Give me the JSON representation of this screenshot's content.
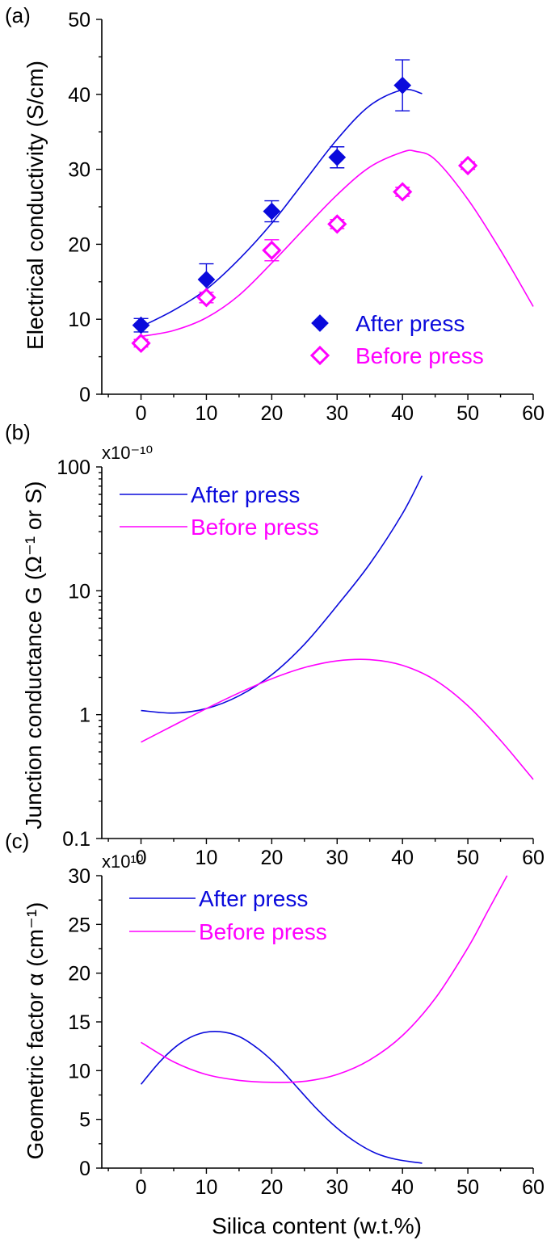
{
  "colors": {
    "after": "#0a0adc",
    "before": "#ff00ff",
    "axis": "#000000"
  },
  "xlabel": "Silica content (w.t.%)",
  "chart_data": [
    {
      "panel": "(a)",
      "type": "scatter",
      "ylabel": "Electrical conductivity (S/cm)",
      "xlim": [
        -6,
        60
      ],
      "ylim": [
        0,
        50
      ],
      "x_ticks": [
        "0",
        "10",
        "20",
        "30",
        "40",
        "50",
        "60"
      ],
      "y_ticks": [
        "0",
        "10",
        "20",
        "30",
        "40",
        "50"
      ],
      "legend_position": "bottom-right",
      "series": [
        {
          "name": "After press",
          "key": "after",
          "marker": "filled-diamond",
          "x": [
            0,
            10,
            20,
            30,
            40
          ],
          "y": [
            9.2,
            15.3,
            24.4,
            31.6,
            41.2
          ],
          "err": [
            0.9,
            2.1,
            1.4,
            1.4,
            3.4
          ]
        },
        {
          "name": "Before press",
          "key": "before",
          "marker": "open-diamond",
          "x": [
            0,
            10,
            20,
            30,
            40,
            50
          ],
          "y": [
            6.8,
            12.9,
            19.2,
            22.7,
            27.0,
            30.5
          ],
          "err": [
            0.5,
            0.7,
            1.4,
            0.6,
            0.6,
            0.5
          ]
        }
      ],
      "fit_lines": [
        {
          "key": "after",
          "x": [
            0,
            5,
            10,
            15,
            20,
            25,
            30,
            35,
            40,
            43
          ],
          "y": [
            9.0,
            11.2,
            14.0,
            18.0,
            22.8,
            28.4,
            34.0,
            38.5,
            40.6,
            40.1
          ]
        },
        {
          "key": "before",
          "x": [
            0,
            5,
            10,
            15,
            20,
            25,
            30,
            35,
            40,
            42,
            45,
            50,
            55,
            60
          ],
          "y": [
            7.7,
            8.5,
            10.2,
            13.2,
            17.5,
            22.1,
            26.6,
            30.3,
            32.3,
            32.4,
            31.3,
            26.0,
            19.2,
            11.7
          ]
        }
      ]
    },
    {
      "panel": "(b)",
      "type": "line",
      "ylabel": "Junction conductance G (Ω⁻¹ or S)",
      "multiplier": "x10⁻¹⁰",
      "y_scale": "log",
      "xlim": [
        -6,
        60
      ],
      "ylim": [
        0.1,
        100
      ],
      "x_ticks": [
        "0",
        "10",
        "20",
        "30",
        "40",
        "50",
        "60"
      ],
      "y_ticks": [
        "0.1",
        "1",
        "10",
        "100"
      ],
      "legend_position": "top-left",
      "series": [
        {
          "name": "After press",
          "key": "after",
          "x": [
            0,
            5,
            10,
            15,
            20,
            25,
            30,
            35,
            40,
            43
          ],
          "y": [
            1.08,
            1.03,
            1.12,
            1.42,
            2.1,
            3.7,
            7.6,
            16.5,
            42,
            85
          ]
        },
        {
          "name": "Before press",
          "key": "before",
          "x": [
            0,
            5,
            10,
            15,
            20,
            25,
            30,
            35,
            40,
            45,
            50,
            55,
            60
          ],
          "y": [
            0.6,
            0.82,
            1.12,
            1.5,
            1.95,
            2.4,
            2.72,
            2.78,
            2.5,
            1.9,
            1.18,
            0.62,
            0.3
          ]
        }
      ]
    },
    {
      "panel": "(c)",
      "type": "line",
      "ylabel": "Geometric factor α (cm⁻¹)",
      "multiplier": "x10¹⁰",
      "xlim": [
        -6,
        60
      ],
      "ylim": [
        0,
        30
      ],
      "x_ticks": [
        "0",
        "10",
        "20",
        "30",
        "40",
        "50",
        "60"
      ],
      "y_ticks": [
        "0",
        "5",
        "10",
        "15",
        "20",
        "25",
        "30"
      ],
      "legend_position": "top-left",
      "series": [
        {
          "name": "After press",
          "key": "after",
          "x": [
            0,
            3,
            6,
            9,
            12,
            15,
            18,
            21,
            24,
            27,
            30,
            33,
            36,
            39,
            43
          ],
          "y": [
            8.6,
            11.0,
            12.8,
            13.8,
            14.0,
            13.5,
            12.2,
            10.4,
            8.2,
            6.0,
            4.1,
            2.6,
            1.5,
            0.9,
            0.5
          ]
        },
        {
          "name": "Before press",
          "key": "before",
          "x": [
            0,
            5,
            10,
            15,
            20,
            25,
            30,
            35,
            40,
            45,
            50,
            53,
            56
          ],
          "y": [
            12.9,
            10.9,
            9.6,
            9.0,
            8.8,
            8.9,
            9.6,
            11.1,
            13.6,
            17.4,
            22.6,
            26.3,
            30.0
          ]
        }
      ]
    }
  ]
}
